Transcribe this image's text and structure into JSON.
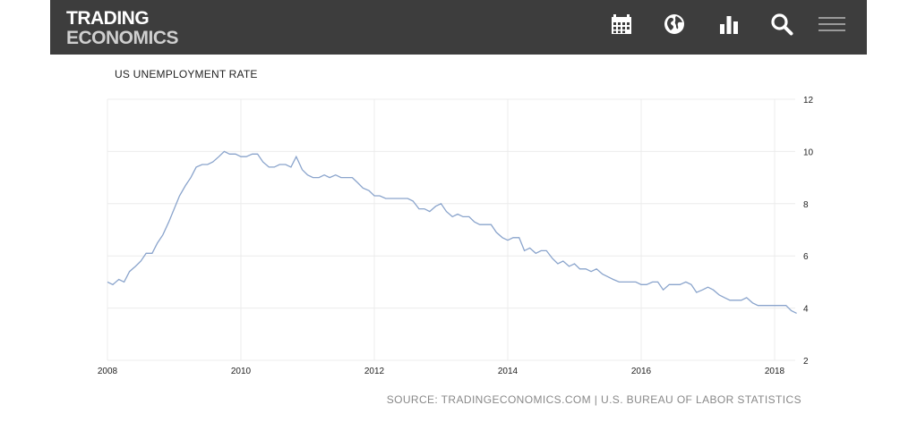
{
  "header": {
    "logo_line1": "TRADING",
    "logo_line2": "ECONOMICS",
    "background_color": "#3d3d3d",
    "icons": [
      "calendar-icon",
      "globe-icon",
      "bar-chart-icon",
      "search-icon",
      "menu-icon"
    ]
  },
  "chart_data": {
    "type": "line",
    "title": "US UNEMPLOYMENT RATE",
    "xlabel": "",
    "ylabel": "",
    "xlim": [
      2008.0,
      2018.33
    ],
    "ylim": [
      2,
      12
    ],
    "x_ticks": [
      "2008",
      "2010",
      "2012",
      "2014",
      "2016",
      "2018"
    ],
    "y_ticks": [
      "12",
      "10",
      "8",
      "6",
      "4",
      "2"
    ],
    "grid": true,
    "line_color": "#8aa4cc",
    "series": [
      {
        "x": [
          2008.0,
          2008.08,
          2008.17,
          2008.25,
          2008.33,
          2008.42,
          2008.5,
          2008.58,
          2008.67,
          2008.75,
          2008.83,
          2008.92,
          2009.0,
          2009.08,
          2009.17,
          2009.25,
          2009.33,
          2009.42,
          2009.5,
          2009.58,
          2009.67,
          2009.75,
          2009.83,
          2009.92,
          2010.0,
          2010.08,
          2010.17,
          2010.25,
          2010.33,
          2010.42,
          2010.5,
          2010.58,
          2010.67,
          2010.75,
          2010.83,
          2010.92,
          2011.0,
          2011.08,
          2011.17,
          2011.25,
          2011.33,
          2011.42,
          2011.5,
          2011.58,
          2011.67,
          2011.75,
          2011.83,
          2011.92,
          2012.0,
          2012.08,
          2012.17,
          2012.25,
          2012.33,
          2012.42,
          2012.5,
          2012.58,
          2012.67,
          2012.75,
          2012.83,
          2012.92,
          2013.0,
          2013.08,
          2013.17,
          2013.25,
          2013.33,
          2013.42,
          2013.5,
          2013.58,
          2013.67,
          2013.75,
          2013.83,
          2013.92,
          2014.0,
          2014.08,
          2014.17,
          2014.25,
          2014.33,
          2014.42,
          2014.5,
          2014.58,
          2014.67,
          2014.75,
          2014.83,
          2014.92,
          2015.0,
          2015.08,
          2015.17,
          2015.25,
          2015.33,
          2015.42,
          2015.5,
          2015.58,
          2015.67,
          2015.75,
          2015.83,
          2015.92,
          2016.0,
          2016.08,
          2016.17,
          2016.25,
          2016.33,
          2016.42,
          2016.5,
          2016.58,
          2016.67,
          2016.75,
          2016.83,
          2016.92,
          2017.0,
          2017.08,
          2017.17,
          2017.25,
          2017.33,
          2017.42,
          2017.5,
          2017.58,
          2017.67,
          2017.75,
          2017.83,
          2017.92,
          2018.0,
          2018.08,
          2018.17,
          2018.25,
          2018.33
        ],
        "values": [
          5.0,
          4.9,
          5.1,
          5.0,
          5.4,
          5.6,
          5.8,
          6.1,
          6.1,
          6.5,
          6.8,
          7.3,
          7.8,
          8.3,
          8.7,
          9.0,
          9.4,
          9.5,
          9.5,
          9.6,
          9.8,
          10.0,
          9.9,
          9.9,
          9.8,
          9.8,
          9.9,
          9.9,
          9.6,
          9.4,
          9.4,
          9.5,
          9.5,
          9.4,
          9.8,
          9.3,
          9.1,
          9.0,
          9.0,
          9.1,
          9.0,
          9.1,
          9.0,
          9.0,
          9.0,
          8.8,
          8.6,
          8.5,
          8.3,
          8.3,
          8.2,
          8.2,
          8.2,
          8.2,
          8.2,
          8.1,
          7.8,
          7.8,
          7.7,
          7.9,
          8.0,
          7.7,
          7.5,
          7.6,
          7.5,
          7.5,
          7.3,
          7.2,
          7.2,
          7.2,
          6.9,
          6.7,
          6.6,
          6.7,
          6.7,
          6.2,
          6.3,
          6.1,
          6.2,
          6.2,
          5.9,
          5.7,
          5.8,
          5.6,
          5.7,
          5.5,
          5.5,
          5.4,
          5.5,
          5.3,
          5.2,
          5.1,
          5.0,
          5.0,
          5.0,
          5.0,
          4.9,
          4.9,
          5.0,
          5.0,
          4.7,
          4.9,
          4.9,
          4.9,
          5.0,
          4.9,
          4.6,
          4.7,
          4.8,
          4.7,
          4.5,
          4.4,
          4.3,
          4.3,
          4.3,
          4.4,
          4.2,
          4.1,
          4.1,
          4.1,
          4.1,
          4.1,
          4.1,
          3.9,
          3.8
        ]
      }
    ]
  },
  "source_text": "SOURCE: TRADINGECONOMICS.COM | U.S. BUREAU OF LABOR STATISTICS"
}
